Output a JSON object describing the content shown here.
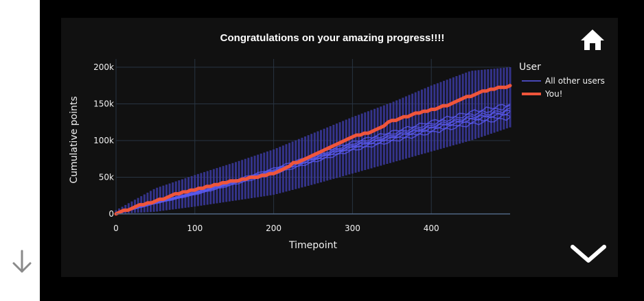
{
  "title": "Congratulations on your amazing progress!!!!",
  "icons": {
    "home": "home-icon",
    "chevron": "chevron-down-icon",
    "scroll": "arrow-down-icon"
  },
  "colors": {
    "others": "#5a5af0",
    "others_band": "#3b3aa0",
    "you": "#ef553b",
    "panel": "#111111",
    "grid": "#283442"
  },
  "legend": {
    "title": "User",
    "others_label": "All other users",
    "you_label": "You!"
  },
  "chart_data": {
    "type": "line",
    "title": "Congratulations on your amazing progress!!!!",
    "xlabel": "Timepoint",
    "ylabel": "Cumulative points",
    "xlim": [
      0,
      500
    ],
    "ylim": [
      0,
      200000
    ],
    "x_ticks": [
      "0",
      "100",
      "200",
      "300",
      "400"
    ],
    "y_ticks": [
      "0",
      "50k",
      "100k",
      "150k",
      "200k"
    ],
    "grid": true,
    "legend_title": "User",
    "legend_position": "right",
    "series": [
      {
        "name": "All other users",
        "kind": "band",
        "x": [
          0,
          50,
          100,
          150,
          200,
          250,
          300,
          350,
          400,
          450,
          500
        ],
        "upper": [
          5000,
          35000,
          53000,
          70000,
          88000,
          110000,
          132000,
          152000,
          175000,
          195000,
          200000
        ],
        "median": [
          0,
          15000,
          28000,
          43000,
          58000,
          75000,
          92000,
          105000,
          118000,
          130000,
          140000
        ],
        "lower": [
          0,
          3000,
          10000,
          18000,
          26000,
          40000,
          55000,
          70000,
          85000,
          100000,
          118000
        ]
      },
      {
        "name": "You!",
        "kind": "line",
        "x": [
          0,
          25,
          50,
          75,
          100,
          125,
          150,
          175,
          200,
          225,
          250,
          275,
          300,
          325,
          350,
          375,
          400,
          425,
          450,
          475,
          500
        ],
        "y": [
          0,
          10000,
          17000,
          27000,
          33000,
          40000,
          45000,
          50000,
          55000,
          69000,
          80000,
          92000,
          105000,
          112000,
          127000,
          135000,
          142000,
          150000,
          161000,
          170000,
          174000
        ]
      }
    ]
  }
}
